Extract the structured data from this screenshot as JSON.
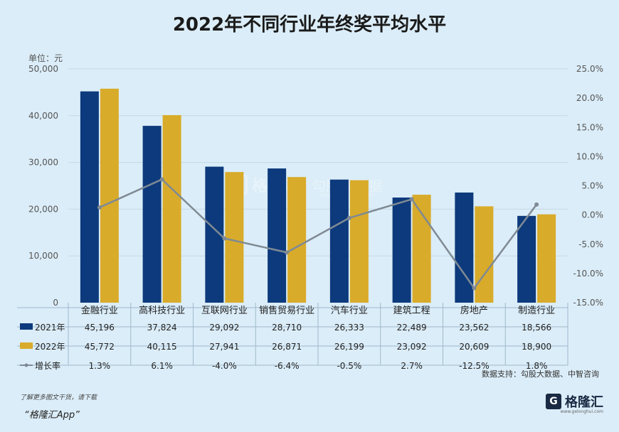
{
  "title": "2022年不同行业年终奖平均水平",
  "unit_label": "单位：元",
  "source": "数据支持：勾股大数据、中智咨询",
  "footer": {
    "note": "了解更多图文干货，请下载",
    "app": "“格隆汇App”"
  },
  "brand": {
    "box": "G",
    "name": "格隆汇",
    "sub": "www.gelonghui.com"
  },
  "watermark": {
    "box": "G",
    "name": "格隆汇",
    "name2": "勾股大数据",
    "url": "www.gogudata.com"
  },
  "colors": {
    "bar2021": "#0d3a7c",
    "bar2022": "#d9ab2a",
    "line": "#7f8a94",
    "grid": "#c4d8e6",
    "table_line": "#9fb8cc"
  },
  "chart_data": {
    "type": "bar",
    "categories": [
      "金融行业",
      "高科技行业",
      "互联网行业",
      "销售贸易行业",
      "汽车行业",
      "建筑工程",
      "房地产",
      "制造行业"
    ],
    "series": [
      {
        "name": "2021年",
        "values": [
          45196,
          37824,
          29092,
          28710,
          26333,
          22489,
          23562,
          18566
        ]
      },
      {
        "name": "2022年",
        "values": [
          45772,
          40115,
          27941,
          26871,
          26199,
          23092,
          20609,
          18900
        ]
      }
    ],
    "line_series": {
      "name": "增长率",
      "values": [
        1.3,
        6.1,
        -4.0,
        -6.4,
        -0.5,
        2.7,
        -12.5,
        1.8
      ]
    },
    "table": {
      "row2021": [
        "45,196",
        "37,824",
        "29,092",
        "28,710",
        "26,333",
        "22,489",
        "23,562",
        "18,566"
      ],
      "row2022": [
        "45,772",
        "40,115",
        "27,941",
        "26,871",
        "26,199",
        "23,092",
        "20,609",
        "18,900"
      ],
      "rowGrowth": [
        "1.3%",
        "6.1%",
        "-4.0%",
        "-6.4%",
        "-0.5%",
        "2.7%",
        "-12.5%",
        "1.8%"
      ]
    },
    "ylim": [
      0,
      50000
    ],
    "y2lim": [
      -15,
      25
    ],
    "yticks": [
      "0",
      "10,000",
      "20,000",
      "30,000",
      "40,000",
      "50,000"
    ],
    "y2ticks": [
      "-15.0%",
      "-10.0%",
      "-5.0%",
      "0.0%",
      "5.0%",
      "10.0%",
      "15.0%",
      "20.0%",
      "25.0%"
    ],
    "legend": "bottom-left-table"
  }
}
